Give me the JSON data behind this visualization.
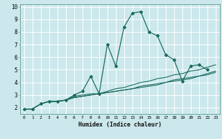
{
  "title": "",
  "xlabel": "Humidex (Indice chaleur)",
  "ylabel": "",
  "xlim": [
    -0.5,
    23.5
  ],
  "ylim": [
    1.5,
    10.2
  ],
  "xticks": [
    0,
    1,
    2,
    3,
    4,
    5,
    6,
    7,
    8,
    9,
    10,
    11,
    12,
    13,
    14,
    15,
    16,
    17,
    18,
    19,
    20,
    21,
    22,
    23
  ],
  "yticks": [
    2,
    3,
    4,
    5,
    6,
    7,
    8,
    9,
    10
  ],
  "background_color": "#cce8ec",
  "grid_color": "#ffffff",
  "line_color": "#1a6b5e",
  "series": [
    {
      "x": [
        0,
        1,
        2,
        3,
        4,
        5,
        6,
        7,
        8,
        9,
        10,
        11,
        12,
        13,
        14,
        15,
        16,
        17,
        18,
        19,
        20,
        21,
        22
      ],
      "y": [
        1.9,
        1.9,
        2.3,
        2.5,
        2.5,
        2.6,
        3.0,
        3.3,
        4.5,
        3.1,
        7.0,
        5.3,
        8.4,
        9.5,
        9.6,
        8.0,
        7.7,
        6.2,
        5.8,
        4.1,
        5.3,
        5.4,
        5.0
      ],
      "marker": true
    },
    {
      "x": [
        0,
        1,
        2,
        3,
        4,
        5,
        6,
        7,
        8,
        9,
        10,
        11,
        12,
        13,
        14,
        15,
        16,
        17,
        18,
        19,
        20,
        21,
        22,
        23
      ],
      "y": [
        1.9,
        1.9,
        2.3,
        2.5,
        2.5,
        2.6,
        2.8,
        2.9,
        3.0,
        3.1,
        3.3,
        3.5,
        3.6,
        3.8,
        4.0,
        4.1,
        4.3,
        4.4,
        4.6,
        4.7,
        4.9,
        5.0,
        5.2,
        5.4
      ],
      "marker": false
    },
    {
      "x": [
        0,
        1,
        2,
        3,
        4,
        5,
        6,
        7,
        8,
        9,
        10,
        11,
        12,
        13,
        14,
        15,
        16,
        17,
        18,
        19,
        20,
        21,
        22,
        23
      ],
      "y": [
        1.9,
        1.9,
        2.3,
        2.5,
        2.5,
        2.6,
        2.9,
        3.0,
        3.1,
        3.1,
        3.2,
        3.3,
        3.4,
        3.5,
        3.7,
        3.8,
        3.9,
        4.0,
        4.2,
        4.3,
        4.4,
        4.5,
        4.7,
        4.9
      ],
      "marker": false
    },
    {
      "x": [
        0,
        1,
        2,
        3,
        4,
        5,
        6,
        7,
        8,
        9,
        10,
        11,
        12,
        13,
        14,
        15,
        16,
        17,
        18,
        19,
        20,
        21,
        22,
        23
      ],
      "y": [
        1.9,
        1.9,
        2.3,
        2.5,
        2.5,
        2.6,
        2.8,
        2.9,
        3.0,
        3.1,
        3.2,
        3.3,
        3.4,
        3.5,
        3.6,
        3.7,
        3.8,
        4.0,
        4.1,
        4.2,
        4.3,
        4.5,
        4.6,
        4.8
      ],
      "marker": false
    }
  ]
}
